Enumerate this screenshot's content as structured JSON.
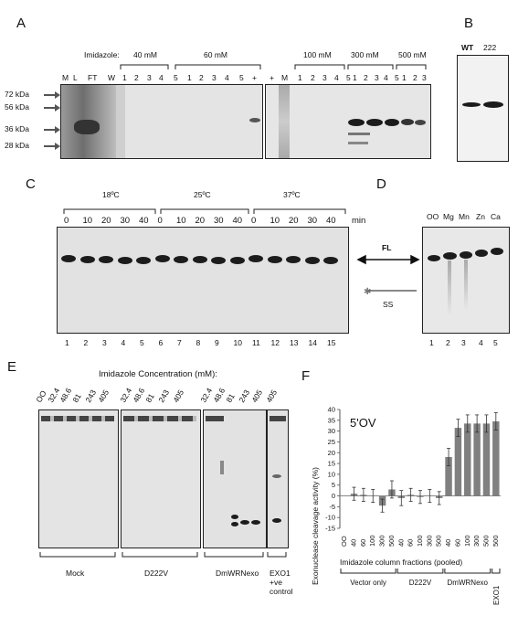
{
  "panels": {
    "a": "A",
    "b": "B",
    "c": "C",
    "d": "D",
    "e": "E",
    "f": "F"
  },
  "panel_a": {
    "imidazole_label": "Imidazole:",
    "conc_groups": [
      "40 mM",
      "60 mM",
      "100 mM",
      "300 mM",
      "500 mM"
    ],
    "lanes_left": [
      "M",
      "L",
      "FT",
      "W",
      "1",
      "2",
      "3",
      "4",
      "5",
      "1",
      "2",
      "3",
      "4",
      "5",
      "+"
    ],
    "lanes_right": [
      "+",
      "M",
      "1",
      "2",
      "3",
      "4",
      "5",
      "1",
      "2",
      "3",
      "4",
      "5",
      "1",
      "2",
      "3"
    ],
    "markers": [
      "72 kDa",
      "56 kDa",
      "36 kDa",
      "28 kDa"
    ]
  },
  "panel_b": {
    "lanes": [
      "WT",
      "222"
    ]
  },
  "panel_c": {
    "temps": [
      "18ºC",
      "25ºC",
      "37ºC"
    ],
    "times": [
      "0",
      "10",
      "20",
      "30",
      "40",
      "0",
      "10",
      "20",
      "30",
      "40",
      "0",
      "10",
      "20",
      "30",
      "40"
    ],
    "time_unit": "min",
    "lane_numbers": [
      "1",
      "2",
      "3",
      "4",
      "5",
      "6",
      "7",
      "8",
      "9",
      "10",
      "11",
      "12",
      "13",
      "14",
      "15"
    ]
  },
  "panel_d": {
    "lanes": [
      "OO",
      "Mg",
      "Mn",
      "Zn",
      "Ca"
    ],
    "lane_numbers": [
      "1",
      "2",
      "3",
      "4",
      "5"
    ],
    "fl_label": "FL",
    "ss_label": "SS"
  },
  "panel_e": {
    "title": "Imidazole Concentration (mM):",
    "lane_labels": [
      "OO",
      "32.4",
      "48.6",
      "81",
      "243",
      "405",
      "32.4",
      "48.6",
      "81",
      "243",
      "405",
      "32.4",
      "48.6",
      "81",
      "243",
      "405",
      "405"
    ],
    "groups": [
      "Mock",
      "D222V",
      "DmWRNexo",
      "EXO1\n+ve\ncontrol"
    ]
  },
  "chart_data": {
    "type": "bar",
    "title": "5'OV",
    "ylabel": "Exonuclease cleavage activity (%)",
    "xlabel": "Imidazole column fractions (pooled)",
    "ylim": [
      -15,
      40
    ],
    "yticks": [
      -15,
      -10,
      -5,
      0,
      5,
      10,
      15,
      20,
      25,
      30,
      35,
      40
    ],
    "categories": [
      "OO",
      "40",
      "60",
      "100",
      "300",
      "500",
      "40",
      "60",
      "100",
      "300",
      "500",
      "40",
      "60",
      "100",
      "300",
      "500",
      "500"
    ],
    "values": [
      0,
      1,
      0.5,
      0,
      -4.5,
      3,
      -1,
      0.5,
      -0.5,
      0,
      -1,
      18,
      31.5,
      33.5,
      33.5,
      33.5,
      34.5
    ],
    "errors": [
      0,
      3,
      3,
      3,
      3,
      4,
      3.5,
      3,
      3,
      3,
      3,
      4,
      4,
      4,
      4,
      4,
      4
    ],
    "groups": [
      {
        "name": "Vector only",
        "from": 0,
        "to": 5
      },
      {
        "name": "D222V",
        "from": 6,
        "to": 10
      },
      {
        "name": "DmWRNexo",
        "from": 11,
        "to": 15
      },
      {
        "name": "EXO1",
        "from": 16,
        "to": 16
      }
    ],
    "grid": false,
    "bar_color": "#808080"
  }
}
